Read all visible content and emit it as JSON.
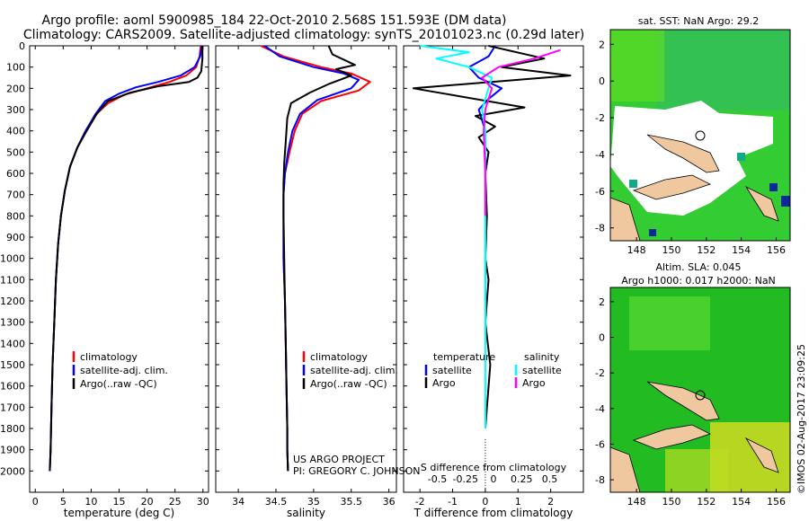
{
  "header": {
    "line1": "Argo profile: aoml 5900985_184 22-Oct-2010 2.568S 151.593E (DM data)",
    "line2": "Climatology: CARS2009. Satellite-adjusted climatology: synTS_20101023.nc (0.29d later)"
  },
  "chart_data": [
    {
      "type": "line",
      "id": "temperature",
      "xlabel": "temperature (deg C)",
      "ylabel": "",
      "xlim": [
        -1,
        31
      ],
      "ylim": [
        2100,
        0
      ],
      "xticks": [
        0,
        5,
        10,
        15,
        20,
        25,
        30
      ],
      "yticks": [
        0,
        100,
        200,
        300,
        400,
        500,
        600,
        700,
        800,
        900,
        1000,
        1100,
        1200,
        1300,
        1400,
        1500,
        1600,
        1700,
        1800,
        1900,
        2000
      ],
      "legend": [
        "climatology",
        "satellite-adj. clim.",
        "Argo(..raw -QC)"
      ],
      "series": [
        {
          "name": "climatology",
          "color": "#ff0000",
          "x": [
            29.6,
            29.4,
            28.8,
            27,
            24,
            20,
            16,
            13,
            11,
            9,
            7.5,
            6.2,
            5.3,
            4.6,
            4.1,
            3.7,
            3.4,
            3.1,
            2.9,
            2.75,
            2.6
          ],
          "y": [
            0,
            50,
            100,
            140,
            170,
            200,
            230,
            270,
            320,
            400,
            480,
            570,
            680,
            800,
            930,
            1100,
            1300,
            1500,
            1700,
            1900,
            2000
          ]
        },
        {
          "name": "satellite-adj. clim.",
          "color": "#0000ff",
          "x": [
            29.8,
            29.5,
            28.5,
            26,
            22,
            18,
            15,
            12.5,
            10.8,
            9,
            7.5,
            6.2,
            5.3,
            4.6,
            4.1,
            3.7,
            3.4,
            3.1,
            2.9,
            2.75,
            2.6
          ],
          "y": [
            0,
            50,
            100,
            140,
            170,
            195,
            225,
            260,
            320,
            400,
            480,
            570,
            680,
            800,
            930,
            1100,
            1300,
            1500,
            1700,
            1900,
            2000
          ]
        },
        {
          "name": "Argo(..raw -QC)",
          "color": "#000000",
          "x": [
            29.9,
            29.9,
            29.7,
            29,
            27.5,
            22,
            17,
            13,
            11,
            9.2,
            7.5,
            6.2,
            5.3,
            4.6,
            4.1,
            3.7,
            3.4,
            3.1,
            2.9,
            2.75,
            2.6
          ],
          "y": [
            0,
            60,
            120,
            150,
            170,
            190,
            220,
            260,
            320,
            400,
            480,
            570,
            680,
            800,
            930,
            1100,
            1300,
            1500,
            1700,
            1900,
            2000
          ]
        }
      ]
    },
    {
      "type": "line",
      "id": "salinity",
      "xlabel": "salinity",
      "ylabel": "",
      "xlim": [
        33.7,
        36.1
      ],
      "ylim": [
        2100,
        0
      ],
      "xticks": [
        34,
        34.5,
        35,
        35.5,
        36
      ],
      "legend": [
        "climatology",
        "satellite-adj. clim.",
        "Argo(..raw -QC)"
      ],
      "annotations": [
        "US ARGO PROJECT",
        "PI: GREGORY C. JOHNSON"
      ],
      "series": [
        {
          "name": "climatology",
          "color": "#ff0000",
          "x": [
            34.3,
            34.6,
            35.1,
            35.5,
            35.75,
            35.6,
            35.1,
            34.85,
            34.75,
            34.68,
            34.62,
            34.6,
            34.6,
            34.6,
            34.62,
            34.63,
            34.64,
            34.65,
            34.65,
            34.66
          ],
          "y": [
            0,
            50,
            100,
            130,
            170,
            210,
            260,
            320,
            400,
            500,
            600,
            700,
            800,
            1000,
            1200,
            1400,
            1600,
            1800,
            1900,
            2000
          ]
        },
        {
          "name": "satellite-adj. clim.",
          "color": "#0000ff",
          "x": [
            34.35,
            34.55,
            35,
            35.4,
            35.6,
            35.5,
            35.05,
            34.82,
            34.72,
            34.66,
            34.62,
            34.6,
            34.6,
            34.6,
            34.62,
            34.63,
            34.64,
            34.65,
            34.65,
            34.66
          ],
          "y": [
            0,
            50,
            100,
            130,
            160,
            200,
            255,
            320,
            400,
            500,
            600,
            700,
            800,
            1000,
            1200,
            1400,
            1600,
            1800,
            1900,
            2000
          ]
        },
        {
          "name": "Argo(..raw -QC)",
          "color": "#000000",
          "x": [
            35.2,
            35.25,
            35.55,
            35.3,
            35.5,
            35.2,
            34.95,
            34.7,
            34.65,
            34.63,
            34.61,
            34.6,
            34.6,
            34.61,
            34.62,
            34.63,
            34.64,
            34.65,
            34.65,
            34.66
          ],
          "y": [
            0,
            40,
            90,
            110,
            140,
            180,
            220,
            270,
            340,
            450,
            550,
            650,
            800,
            1000,
            1200,
            1400,
            1600,
            1800,
            1900,
            2000
          ]
        }
      ]
    },
    {
      "type": "line",
      "id": "difference",
      "xlabel": "T difference from climatology",
      "xlabel_top": "S difference from climatology",
      "xlim": [
        -2.5,
        3
      ],
      "ylim": [
        2100,
        0
      ],
      "xticks": [
        -2,
        -1,
        0,
        1,
        2
      ],
      "sticks": [
        -0.5,
        -0.25,
        0,
        0.25,
        0.5
      ],
      "legend_headers": [
        "temperature",
        "salinity"
      ],
      "legend": [
        "satellite",
        "Argo",
        "satellite",
        "Argo"
      ],
      "series": [
        {
          "name": "temperature satellite",
          "color": "#0000ff",
          "x": [
            0.3,
            0.1,
            -0.5,
            -0.2,
            0.5,
            0.1,
            -0.2,
            -0.1,
            0,
            0,
            0,
            0
          ],
          "y": [
            0,
            50,
            100,
            150,
            200,
            250,
            300,
            350,
            400,
            600,
            900,
            1200
          ]
        },
        {
          "name": "temperature Argo",
          "color": "#000000",
          "x": [
            0.1,
            1.8,
            0.5,
            2.6,
            -2.2,
            1.2,
            -0.3,
            0.3,
            -0.2,
            0.1,
            0,
            0.05,
            0,
            0.1,
            0,
            0.15,
            0
          ],
          "y": [
            0,
            60,
            100,
            140,
            200,
            290,
            330,
            380,
            430,
            500,
            600,
            800,
            1000,
            1100,
            1300,
            1500,
            1800
          ]
        },
        {
          "name": "salinity satellite",
          "color": "#00ffff",
          "x": [
            -2,
            -0.5,
            -1.5,
            -0.5,
            0.2,
            0.1,
            0,
            -0.1,
            0,
            0,
            0,
            0,
            0,
            0
          ],
          "y": [
            0,
            30,
            60,
            100,
            150,
            200,
            250,
            300,
            400,
            600,
            900,
            1200,
            1500,
            1800
          ]
        },
        {
          "name": "salinity Argo",
          "color": "#ff00ff",
          "x": [
            2.3,
            1.5,
            0.4,
            -0.1,
            0.2,
            0.1,
            0,
            -0.05,
            0,
            0
          ],
          "y": [
            20,
            60,
            100,
            150,
            200,
            250,
            300,
            400,
            600,
            800
          ]
        }
      ]
    },
    {
      "type": "heatmap",
      "id": "sst_map",
      "title": "sat. SST: NaN Argo: 29.2",
      "xticks": [
        148,
        150,
        152,
        154,
        156
      ],
      "yticks": [
        2,
        0,
        -2,
        -4,
        -6,
        -8
      ]
    },
    {
      "type": "heatmap",
      "id": "sla_map",
      "title1": "Altim. SLA: 0.045",
      "title2": "Argo h1000: 0.017 h2000: NaN",
      "xticks": [
        148,
        150,
        152,
        154,
        156
      ],
      "yticks": [
        2,
        0,
        -2,
        -4,
        -6,
        -8
      ]
    }
  ],
  "footer": {
    "credit": "©IMOS 02-Aug-2017 23:09:25"
  }
}
